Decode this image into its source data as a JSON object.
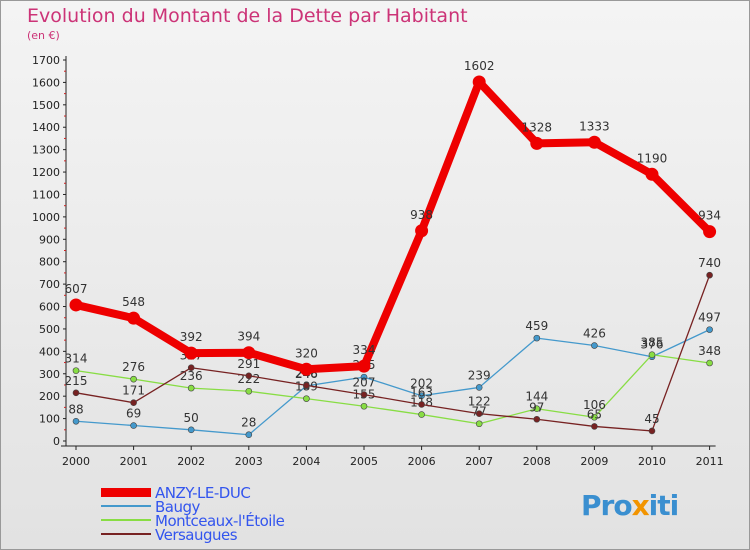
{
  "title": "Evolution du Montant de la Dette par Habitant",
  "subtitle": "(en €)",
  "logo": {
    "part1": "Pro",
    "part2": "x",
    "part3": "iti"
  },
  "chart_data": {
    "type": "line",
    "x": [
      "2000",
      "2001",
      "2002",
      "2003",
      "2004",
      "2005",
      "2006",
      "2007",
      "2008",
      "2009",
      "2010",
      "2011"
    ],
    "ylim": [
      0,
      1700
    ],
    "yticks": [
      0,
      100,
      200,
      300,
      400,
      500,
      600,
      700,
      800,
      900,
      1000,
      1100,
      1200,
      1300,
      1400,
      1500,
      1600,
      1700
    ],
    "grid": false,
    "legend_position": "bottom-left",
    "series": [
      {
        "name": "ANZY-LE-DUC",
        "color": "#ee0000",
        "values": [
          607,
          548,
          392,
          394,
          320,
          334,
          938,
          1602,
          1328,
          1333,
          1190,
          934
        ]
      },
      {
        "name": "Baugy",
        "color": "#4499cc",
        "values": [
          88,
          69,
          50,
          28,
          246,
          285,
          202,
          239,
          459,
          426,
          376,
          497
        ]
      },
      {
        "name": "Montceaux-l'Étoile",
        "color": "#88dd44",
        "values": [
          314,
          276,
          236,
          222,
          189,
          155,
          118,
          77,
          144,
          106,
          385,
          348
        ]
      },
      {
        "name": "Versaugues",
        "color": "#772222",
        "values": [
          215,
          171,
          327,
          291,
          248,
          207,
          163,
          122,
          97,
          65,
          45,
          740
        ]
      }
    ],
    "data_labels": [
      [
        "607",
        "548",
        "392",
        "394",
        "320",
        "334",
        "938",
        "1602",
        "1328",
        "1333",
        "1190",
        "934"
      ],
      [
        "88",
        "69",
        "50",
        "28",
        "246",
        "285",
        "202",
        "239",
        "459",
        "426",
        "376",
        "497"
      ],
      [
        "314",
        "276",
        "236",
        "222",
        "189",
        "155",
        "118",
        "77",
        "144",
        "106",
        "385",
        "348"
      ],
      [
        "215",
        "171",
        "327",
        "291",
        "248",
        "207",
        "163",
        "122",
        "97",
        "65",
        "45",
        "740"
      ]
    ]
  }
}
